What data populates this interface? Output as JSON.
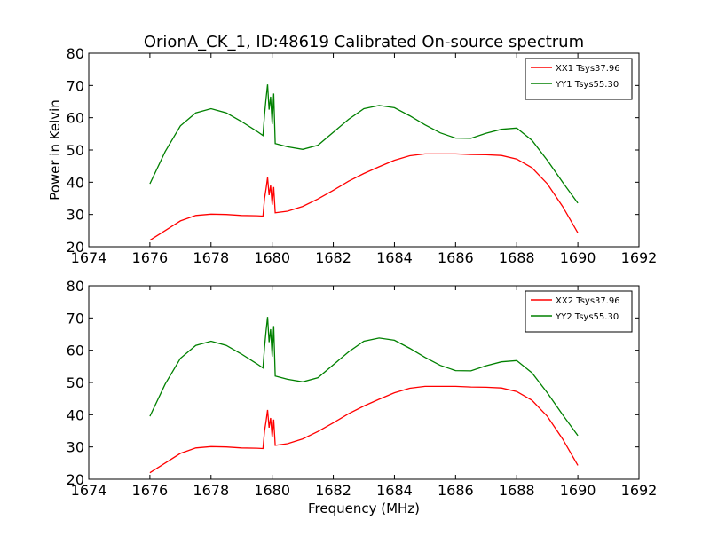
{
  "title": "OrionA_CK_1, ID:48619 Calibrated On-source spectrum",
  "chart_data": [
    {
      "type": "line",
      "xlabel": "",
      "ylabel": "Power in Kelvin",
      "xlim": [
        1674,
        1692
      ],
      "ylim": [
        20,
        80
      ],
      "xticks": [
        1674,
        1676,
        1678,
        1680,
        1682,
        1684,
        1686,
        1688,
        1690,
        1692
      ],
      "yticks": [
        20,
        30,
        40,
        50,
        60,
        70,
        80
      ],
      "grid": false,
      "legend": "top-right",
      "series": [
        {
          "name": "XX1 Tsys37.96",
          "color": "#ff0000",
          "x": [
            1676.0,
            1676.5,
            1677.0,
            1677.5,
            1678.0,
            1678.5,
            1679.0,
            1679.5,
            1679.7,
            1679.75,
            1679.8,
            1679.85,
            1679.9,
            1679.95,
            1680.0,
            1680.05,
            1680.1,
            1680.5,
            1681.0,
            1681.5,
            1682.0,
            1682.5,
            1683.0,
            1683.5,
            1684.0,
            1684.5,
            1685.0,
            1685.5,
            1686.0,
            1686.5,
            1687.0,
            1687.5,
            1688.0,
            1688.5,
            1689.0,
            1689.5,
            1690.0
          ],
          "y": [
            22,
            25,
            28,
            29.7,
            30.1,
            30,
            29.7,
            29.6,
            29.5,
            35,
            38,
            41.5,
            36,
            39,
            33,
            38.5,
            30.5,
            31,
            32.5,
            34.8,
            37.5,
            40.3,
            42.7,
            44.8,
            46.8,
            48.2,
            48.8,
            48.8,
            48.8,
            48.6,
            48.5,
            48.3,
            47.2,
            44.5,
            39.5,
            32.5,
            24.3
          ]
        },
        {
          "name": "YY1 Tsys55.30",
          "color": "#008000",
          "x": [
            1676.0,
            1676.5,
            1677.0,
            1677.5,
            1678.0,
            1678.5,
            1679.0,
            1679.5,
            1679.7,
            1679.75,
            1679.8,
            1679.85,
            1679.9,
            1679.95,
            1680.0,
            1680.05,
            1680.1,
            1680.5,
            1681.0,
            1681.5,
            1682.0,
            1682.5,
            1683.0,
            1683.5,
            1684.0,
            1684.5,
            1685.0,
            1685.5,
            1686.0,
            1686.5,
            1687.0,
            1687.5,
            1688.0,
            1688.5,
            1689.0,
            1689.5,
            1690.0
          ],
          "y": [
            39.5,
            49.5,
            57.5,
            61.5,
            62.8,
            61.5,
            58.8,
            55.8,
            54.5,
            61,
            66,
            70.3,
            62.5,
            66.5,
            58,
            67.5,
            52,
            51,
            50.2,
            51.5,
            55.5,
            59.5,
            62.8,
            63.8,
            63.1,
            60.6,
            57.8,
            55.3,
            53.7,
            53.6,
            55.2,
            56.4,
            56.8,
            53,
            46.8,
            40,
            33.5
          ]
        }
      ]
    },
    {
      "type": "line",
      "xlabel": "Frequency (MHz)",
      "ylabel": "",
      "xlim": [
        1674,
        1692
      ],
      "ylim": [
        20,
        80
      ],
      "xticks": [
        1674,
        1676,
        1678,
        1680,
        1682,
        1684,
        1686,
        1688,
        1690,
        1692
      ],
      "yticks": [
        20,
        30,
        40,
        50,
        60,
        70,
        80
      ],
      "grid": false,
      "legend": "top-right",
      "series": [
        {
          "name": "XX2 Tsys37.96",
          "color": "#ff0000",
          "x": [
            1676.0,
            1676.5,
            1677.0,
            1677.5,
            1678.0,
            1678.5,
            1679.0,
            1679.5,
            1679.7,
            1679.75,
            1679.8,
            1679.85,
            1679.9,
            1679.95,
            1680.0,
            1680.05,
            1680.1,
            1680.5,
            1681.0,
            1681.5,
            1682.0,
            1682.5,
            1683.0,
            1683.5,
            1684.0,
            1684.5,
            1685.0,
            1685.5,
            1686.0,
            1686.5,
            1687.0,
            1687.5,
            1688.0,
            1688.5,
            1689.0,
            1689.5,
            1690.0
          ],
          "y": [
            22,
            25,
            28,
            29.7,
            30.1,
            30,
            29.7,
            29.6,
            29.5,
            35,
            38,
            41.5,
            36,
            39,
            33,
            38.5,
            30.5,
            31,
            32.5,
            34.8,
            37.5,
            40.3,
            42.7,
            44.8,
            46.8,
            48.2,
            48.8,
            48.8,
            48.8,
            48.6,
            48.5,
            48.3,
            47.2,
            44.5,
            39.5,
            32.5,
            24.3
          ]
        },
        {
          "name": "YY2 Tsys55.30",
          "color": "#008000",
          "x": [
            1676.0,
            1676.5,
            1677.0,
            1677.5,
            1678.0,
            1678.5,
            1679.0,
            1679.5,
            1679.7,
            1679.75,
            1679.8,
            1679.85,
            1679.9,
            1679.95,
            1680.0,
            1680.05,
            1680.1,
            1680.5,
            1681.0,
            1681.5,
            1682.0,
            1682.5,
            1683.0,
            1683.5,
            1684.0,
            1684.5,
            1685.0,
            1685.5,
            1686.0,
            1686.5,
            1687.0,
            1687.5,
            1688.0,
            1688.5,
            1689.0,
            1689.5,
            1690.0
          ],
          "y": [
            39.5,
            49.5,
            57.5,
            61.5,
            62.8,
            61.5,
            58.8,
            55.8,
            54.5,
            61,
            66,
            70.3,
            62.5,
            66.5,
            58,
            67.5,
            52,
            51,
            50.2,
            51.5,
            55.5,
            59.5,
            62.8,
            63.8,
            63.1,
            60.6,
            57.8,
            55.3,
            53.7,
            53.6,
            55.2,
            56.4,
            56.8,
            53,
            46.8,
            40,
            33.5
          ]
        }
      ]
    }
  ]
}
